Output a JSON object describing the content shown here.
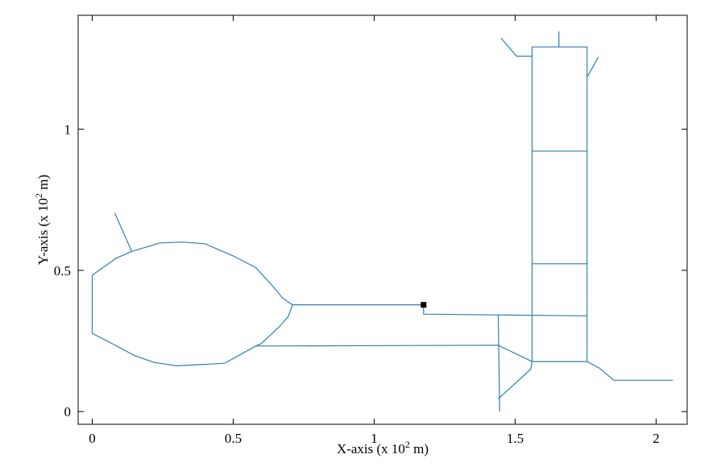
{
  "chart_data": {
    "type": "line",
    "xlabel": "X-axis (x 10",
    "xlabel_exp": "2",
    "xlabel_unit": " m)",
    "ylabel": "Y-axis (x 10",
    "ylabel_exp": "2",
    "ylabel_unit": " m)",
    "xlim": [
      -0.05,
      2.11
    ],
    "ylim": [
      -0.045,
      1.403
    ],
    "x_ticks": [
      {
        "v": 0,
        "label": "0"
      },
      {
        "v": 0.5,
        "label": "0.5"
      },
      {
        "v": 1,
        "label": "1"
      },
      {
        "v": 1.5,
        "label": "1.5"
      },
      {
        "v": 2,
        "label": "2"
      }
    ],
    "y_ticks": [
      {
        "v": 0,
        "label": "0"
      },
      {
        "v": 0.5,
        "label": "0.5"
      },
      {
        "v": 1,
        "label": "1"
      }
    ],
    "grid": false,
    "line_color": "#2e7fae",
    "marker_color": "#000000",
    "marker": {
      "x": 1.175,
      "y": 0.378
    },
    "series": [
      {
        "points": [
          [
            0.0,
            0.483
          ],
          [
            0.085,
            0.543
          ],
          [
            0.14,
            0.567
          ],
          [
            0.24,
            0.597
          ],
          [
            0.32,
            0.6
          ],
          [
            0.4,
            0.594
          ],
          [
            0.5,
            0.551
          ],
          [
            0.58,
            0.51
          ],
          [
            0.64,
            0.444
          ],
          [
            0.675,
            0.402
          ],
          [
            0.71,
            0.378
          ],
          [
            0.695,
            0.336
          ],
          [
            0.66,
            0.297
          ],
          [
            0.6,
            0.241
          ],
          [
            0.58,
            0.232
          ],
          [
            0.47,
            0.171
          ],
          [
            0.3,
            0.162
          ],
          [
            0.22,
            0.174
          ],
          [
            0.15,
            0.198
          ],
          [
            0.06,
            0.246
          ],
          [
            0.0,
            0.277
          ],
          [
            0.0,
            0.483
          ]
        ]
      },
      {
        "points": [
          [
            0.08,
            0.703
          ],
          [
            0.14,
            0.567
          ]
        ]
      },
      {
        "points": [
          [
            0.71,
            0.378
          ],
          [
            1.175,
            0.378
          ],
          [
            1.175,
            0.345
          ],
          [
            1.44,
            0.342
          ],
          [
            1.755,
            0.339
          ]
        ]
      },
      {
        "points": [
          [
            0.58,
            0.232
          ],
          [
            1.44,
            0.235
          ],
          [
            1.56,
            0.177
          ],
          [
            1.755,
            0.177
          ],
          [
            1.8,
            0.153
          ],
          [
            1.85,
            0.111
          ],
          [
            2.06,
            0.111
          ]
        ]
      },
      {
        "points": [
          [
            1.44,
            0.342
          ],
          [
            1.445,
            0.0
          ]
        ]
      },
      {
        "points": [
          [
            1.44,
            0.045
          ],
          [
            1.555,
            0.15
          ],
          [
            1.56,
            0.177
          ],
          [
            1.56,
            1.291
          ],
          [
            1.755,
            1.291
          ],
          [
            1.755,
            0.177
          ]
        ]
      },
      {
        "points": [
          [
            1.56,
            0.922
          ],
          [
            1.755,
            0.922
          ]
        ]
      },
      {
        "points": [
          [
            1.56,
            0.523
          ],
          [
            1.755,
            0.523
          ]
        ]
      },
      {
        "points": [
          [
            1.56,
            1.258
          ],
          [
            1.505,
            1.258
          ],
          [
            1.45,
            1.322
          ]
        ]
      },
      {
        "points": [
          [
            1.655,
            1.291
          ],
          [
            1.655,
            1.346
          ]
        ]
      },
      {
        "points": [
          [
            1.755,
            1.184
          ],
          [
            1.795,
            1.255
          ]
        ]
      }
    ]
  }
}
